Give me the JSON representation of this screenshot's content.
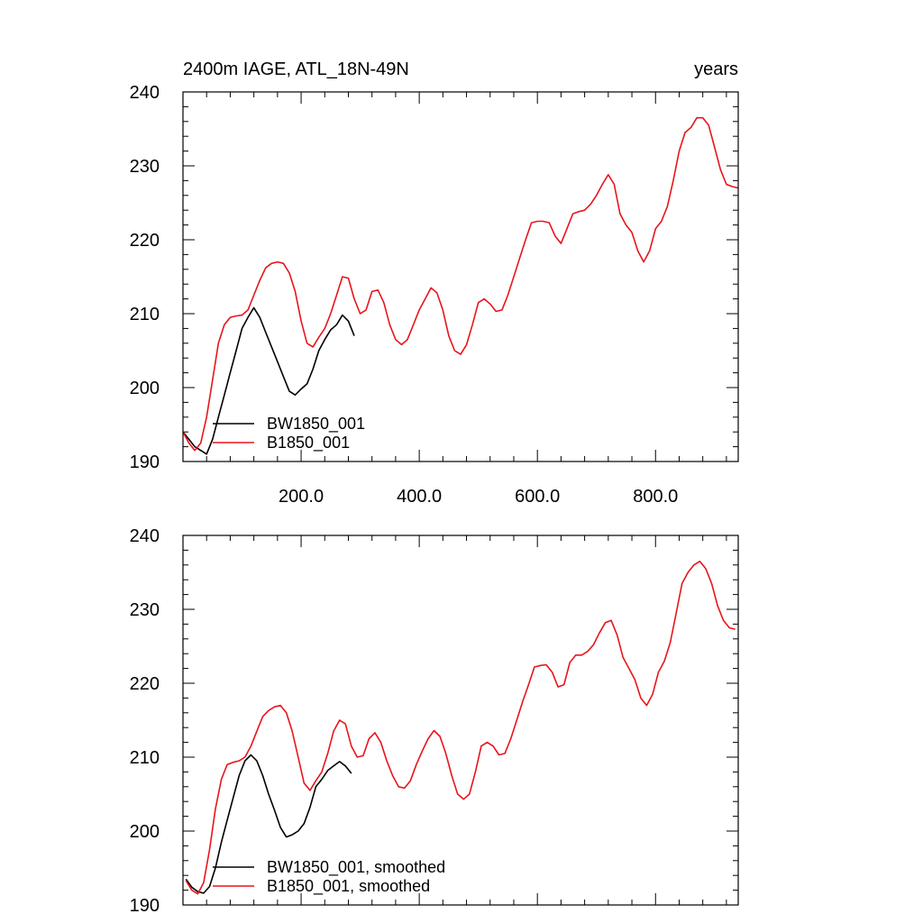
{
  "colors": {
    "series_black": "#000000",
    "series_red": "#e8141b",
    "axes": "#000000",
    "background": "#ffffff"
  },
  "chart_data": [
    {
      "type": "line",
      "title": "2400m IAGE, ATL_18N-49N",
      "right_title": "years",
      "xlim": [
        0,
        940
      ],
      "ylim": [
        190,
        240
      ],
      "x_ticks": [
        200,
        400,
        600,
        800
      ],
      "x_tick_labels": [
        "200.0",
        "400.0",
        "600.0",
        "800.0"
      ],
      "y_ticks": [
        190,
        200,
        210,
        220,
        230,
        240
      ],
      "y_tick_labels": [
        "190",
        "200",
        "210",
        "220",
        "230",
        "240"
      ],
      "legend_position": "bottom-left",
      "series": [
        {
          "name": "BW1850_001",
          "color": "#000000",
          "x": [
            0,
            10,
            20,
            30,
            40,
            50,
            60,
            70,
            80,
            90,
            100,
            110,
            120,
            130,
            140,
            150,
            160,
            170,
            180,
            190,
            200,
            210,
            220,
            230,
            240,
            250,
            260,
            270,
            280,
            290
          ],
          "y": [
            194,
            193,
            192,
            191.5,
            191,
            193,
            196,
            199,
            202,
            205,
            208,
            209.5,
            210.8,
            209.5,
            207.5,
            205.5,
            203.5,
            201.5,
            199.5,
            199,
            199.8,
            200.5,
            202.5,
            205,
            206.5,
            207.8,
            208.5,
            209.8,
            209,
            207
          ]
        },
        {
          "name": "B1850_001",
          "color": "#e8141b",
          "x": [
            0,
            10,
            20,
            30,
            40,
            50,
            60,
            70,
            80,
            90,
            100,
            110,
            120,
            130,
            140,
            150,
            160,
            170,
            180,
            190,
            200,
            210,
            220,
            230,
            240,
            250,
            260,
            270,
            280,
            290,
            300,
            310,
            320,
            330,
            340,
            350,
            360,
            370,
            380,
            390,
            400,
            410,
            420,
            430,
            440,
            450,
            460,
            470,
            480,
            490,
            500,
            510,
            520,
            530,
            540,
            550,
            560,
            570,
            580,
            590,
            600,
            610,
            620,
            630,
            640,
            650,
            660,
            670,
            680,
            690,
            700,
            710,
            720,
            730,
            740,
            750,
            760,
            770,
            780,
            790,
            800,
            810,
            820,
            830,
            840,
            850,
            860,
            870,
            880,
            890,
            900,
            910,
            920,
            930,
            940
          ],
          "y": [
            194,
            192.5,
            191.5,
            192.5,
            196,
            201,
            206,
            208.5,
            209.5,
            209.7,
            209.8,
            210.5,
            212.5,
            214.5,
            216.2,
            216.8,
            217,
            216.8,
            215.5,
            213,
            209,
            206,
            205.5,
            206.8,
            208,
            210,
            212.5,
            215,
            214.8,
            212,
            210,
            210.5,
            213,
            213.2,
            211.5,
            208.5,
            206.5,
            205.8,
            206.5,
            208.5,
            210.5,
            212,
            213.5,
            212.8,
            210.5,
            207,
            205,
            204.5,
            205.8,
            208.5,
            211.5,
            212,
            211.3,
            210.3,
            210.5,
            212.5,
            215,
            217.5,
            220,
            222.3,
            222.5,
            222.5,
            222.3,
            220.5,
            219.5,
            221.5,
            223.5,
            223.8,
            224,
            224.8,
            226,
            227.5,
            228.8,
            227.5,
            223.5,
            222,
            221,
            218.5,
            217,
            218.5,
            221.5,
            222.5,
            224.5,
            228,
            232,
            234.5,
            235.2,
            236.5,
            236.5,
            235.5,
            232.5,
            229.5,
            227.5,
            227.2,
            227
          ]
        }
      ]
    },
    {
      "type": "line",
      "xlim": [
        0,
        940
      ],
      "ylim": [
        190,
        240
      ],
      "x_ticks": [
        200,
        400,
        600,
        800
      ],
      "y_ticks": [
        190,
        200,
        210,
        220,
        230,
        240
      ],
      "y_tick_labels": [
        "190",
        "200",
        "210",
        "220",
        "230",
        "240"
      ],
      "legend_position": "bottom-left",
      "series": [
        {
          "name": "BW1850_001, smoothed",
          "color": "#000000",
          "x": [
            5,
            15,
            25,
            35,
            45,
            55,
            65,
            75,
            85,
            95,
            105,
            115,
            125,
            135,
            145,
            155,
            165,
            175,
            185,
            195,
            205,
            215,
            225,
            235,
            245,
            255,
            265,
            275,
            285
          ],
          "y": [
            193.5,
            192.4,
            191.8,
            191.6,
            192.5,
            195,
            198.5,
            201.5,
            204.5,
            207.5,
            209.5,
            210.3,
            209.5,
            207.5,
            205,
            202.8,
            200.5,
            199.2,
            199.5,
            200,
            201,
            203.2,
            206,
            207,
            208.2,
            208.8,
            209.4,
            208.8,
            207.8
          ]
        },
        {
          "name": "B1850_001, smoothed",
          "color": "#e8141b",
          "x": [
            5,
            15,
            25,
            35,
            45,
            55,
            65,
            75,
            85,
            95,
            105,
            115,
            125,
            135,
            145,
            155,
            165,
            175,
            185,
            195,
            205,
            215,
            225,
            235,
            245,
            255,
            265,
            275,
            285,
            295,
            305,
            315,
            325,
            335,
            345,
            355,
            365,
            375,
            385,
            395,
            405,
            415,
            425,
            435,
            445,
            455,
            465,
            475,
            485,
            495,
            505,
            515,
            525,
            535,
            545,
            555,
            565,
            575,
            585,
            595,
            605,
            615,
            625,
            635,
            645,
            655,
            665,
            675,
            685,
            695,
            705,
            715,
            725,
            735,
            745,
            755,
            765,
            775,
            785,
            795,
            805,
            815,
            825,
            835,
            845,
            855,
            865,
            875,
            885,
            895,
            905,
            915,
            925,
            935
          ],
          "y": [
            193.3,
            192,
            191.5,
            193,
            197.5,
            203,
            207,
            209,
            209.3,
            209.5,
            210,
            211.5,
            213.5,
            215.5,
            216.3,
            216.8,
            217,
            216,
            213.5,
            210,
            206.5,
            205.5,
            206.8,
            208,
            210.5,
            213.5,
            215,
            214.5,
            211.5,
            210,
            210.2,
            212.5,
            213.3,
            212,
            209.5,
            207.5,
            206,
            205.8,
            206.8,
            209,
            210.8,
            212.5,
            213.6,
            212.8,
            210.5,
            207.5,
            205,
            204.3,
            205,
            208,
            211.5,
            212,
            211.5,
            210.3,
            210.5,
            212.5,
            215,
            217.5,
            219.8,
            222.2,
            222.4,
            222.5,
            221.5,
            219.5,
            219.8,
            222.8,
            223.8,
            223.8,
            224.3,
            225.2,
            226.8,
            228.2,
            228.5,
            226.5,
            223.5,
            222,
            220.5,
            218,
            217,
            218.5,
            221.5,
            223,
            225.5,
            229.5,
            233.5,
            235,
            236,
            236.5,
            235.5,
            233.5,
            230.5,
            228.5,
            227.5,
            227.3
          ]
        }
      ]
    }
  ]
}
